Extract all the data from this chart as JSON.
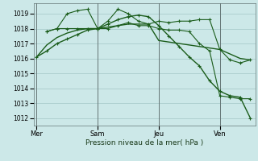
{
  "bg_color": "#cce8e8",
  "grid_color": "#aacccc",
  "line_color": "#1a5c1a",
  "marker_color": "#1a5c1a",
  "xlabel": "Pression niveau de la mer( hPa )",
  "ylim": [
    1011.5,
    1019.7
  ],
  "yticks": [
    1012,
    1013,
    1014,
    1015,
    1016,
    1017,
    1018,
    1019
  ],
  "xtick_labels": [
    "Mer",
    "Sam",
    "Jeu",
    "Ven"
  ],
  "xtick_positions": [
    0,
    6,
    12,
    18
  ],
  "vlines": [
    0,
    6,
    12,
    18
  ],
  "xlim": [
    -0.3,
    21.5
  ],
  "series": [
    {
      "x": [
        0,
        1,
        2,
        3,
        4,
        5,
        6,
        7,
        8,
        9,
        10,
        11,
        12,
        13,
        14,
        15,
        16,
        17,
        18,
        19,
        20,
        21
      ],
      "y": [
        1016.1,
        1016.9,
        1017.4,
        1017.7,
        1017.9,
        1018.0,
        1018.0,
        1018.1,
        1018.2,
        1018.3,
        1018.3,
        1018.3,
        1017.2,
        1017.1,
        1017.0,
        1016.9,
        1016.8,
        1016.7,
        1016.6,
        1016.3,
        1016.0,
        1015.9
      ],
      "marker": false,
      "linewidth": 1.0
    },
    {
      "x": [
        1,
        2,
        3,
        4,
        5,
        6,
        7,
        8,
        9,
        10,
        11,
        12,
        13,
        14,
        15,
        16,
        17,
        18,
        19,
        20,
        21
      ],
      "y": [
        1017.8,
        1018.0,
        1019.0,
        1019.2,
        1019.3,
        1018.0,
        1018.5,
        1019.3,
        1019.0,
        1018.5,
        1018.3,
        1018.5,
        1018.4,
        1018.5,
        1018.5,
        1018.6,
        1018.6,
        1016.6,
        1015.9,
        1015.7,
        1015.9
      ],
      "marker": true,
      "linewidth": 0.8
    },
    {
      "x": [
        1,
        2,
        3,
        4,
        5,
        6,
        7,
        8,
        9,
        10,
        11,
        12,
        13,
        14,
        15,
        16,
        17,
        18,
        19,
        20,
        21
      ],
      "y": [
        1017.8,
        1018.0,
        1018.0,
        1018.0,
        1018.0,
        1018.0,
        1018.0,
        1018.2,
        1018.4,
        1018.2,
        1018.2,
        1018.0,
        1017.9,
        1017.9,
        1017.8,
        1017.0,
        1016.5,
        1013.5,
        1013.4,
        1013.3,
        1013.3
      ],
      "marker": true,
      "linewidth": 0.8
    },
    {
      "x": [
        0,
        1,
        2,
        3,
        4,
        5,
        6,
        7,
        8,
        9,
        10,
        11,
        12,
        13,
        14,
        15,
        16,
        17,
        18,
        19,
        20,
        21
      ],
      "y": [
        1016.1,
        1016.5,
        1017.0,
        1017.3,
        1017.6,
        1017.9,
        1018.0,
        1018.3,
        1018.6,
        1018.8,
        1018.9,
        1018.8,
        1018.2,
        1017.5,
        1016.8,
        1016.1,
        1015.5,
        1014.5,
        1013.8,
        1013.5,
        1013.4,
        1012.0
      ],
      "marker": true,
      "linewidth": 1.0
    }
  ]
}
